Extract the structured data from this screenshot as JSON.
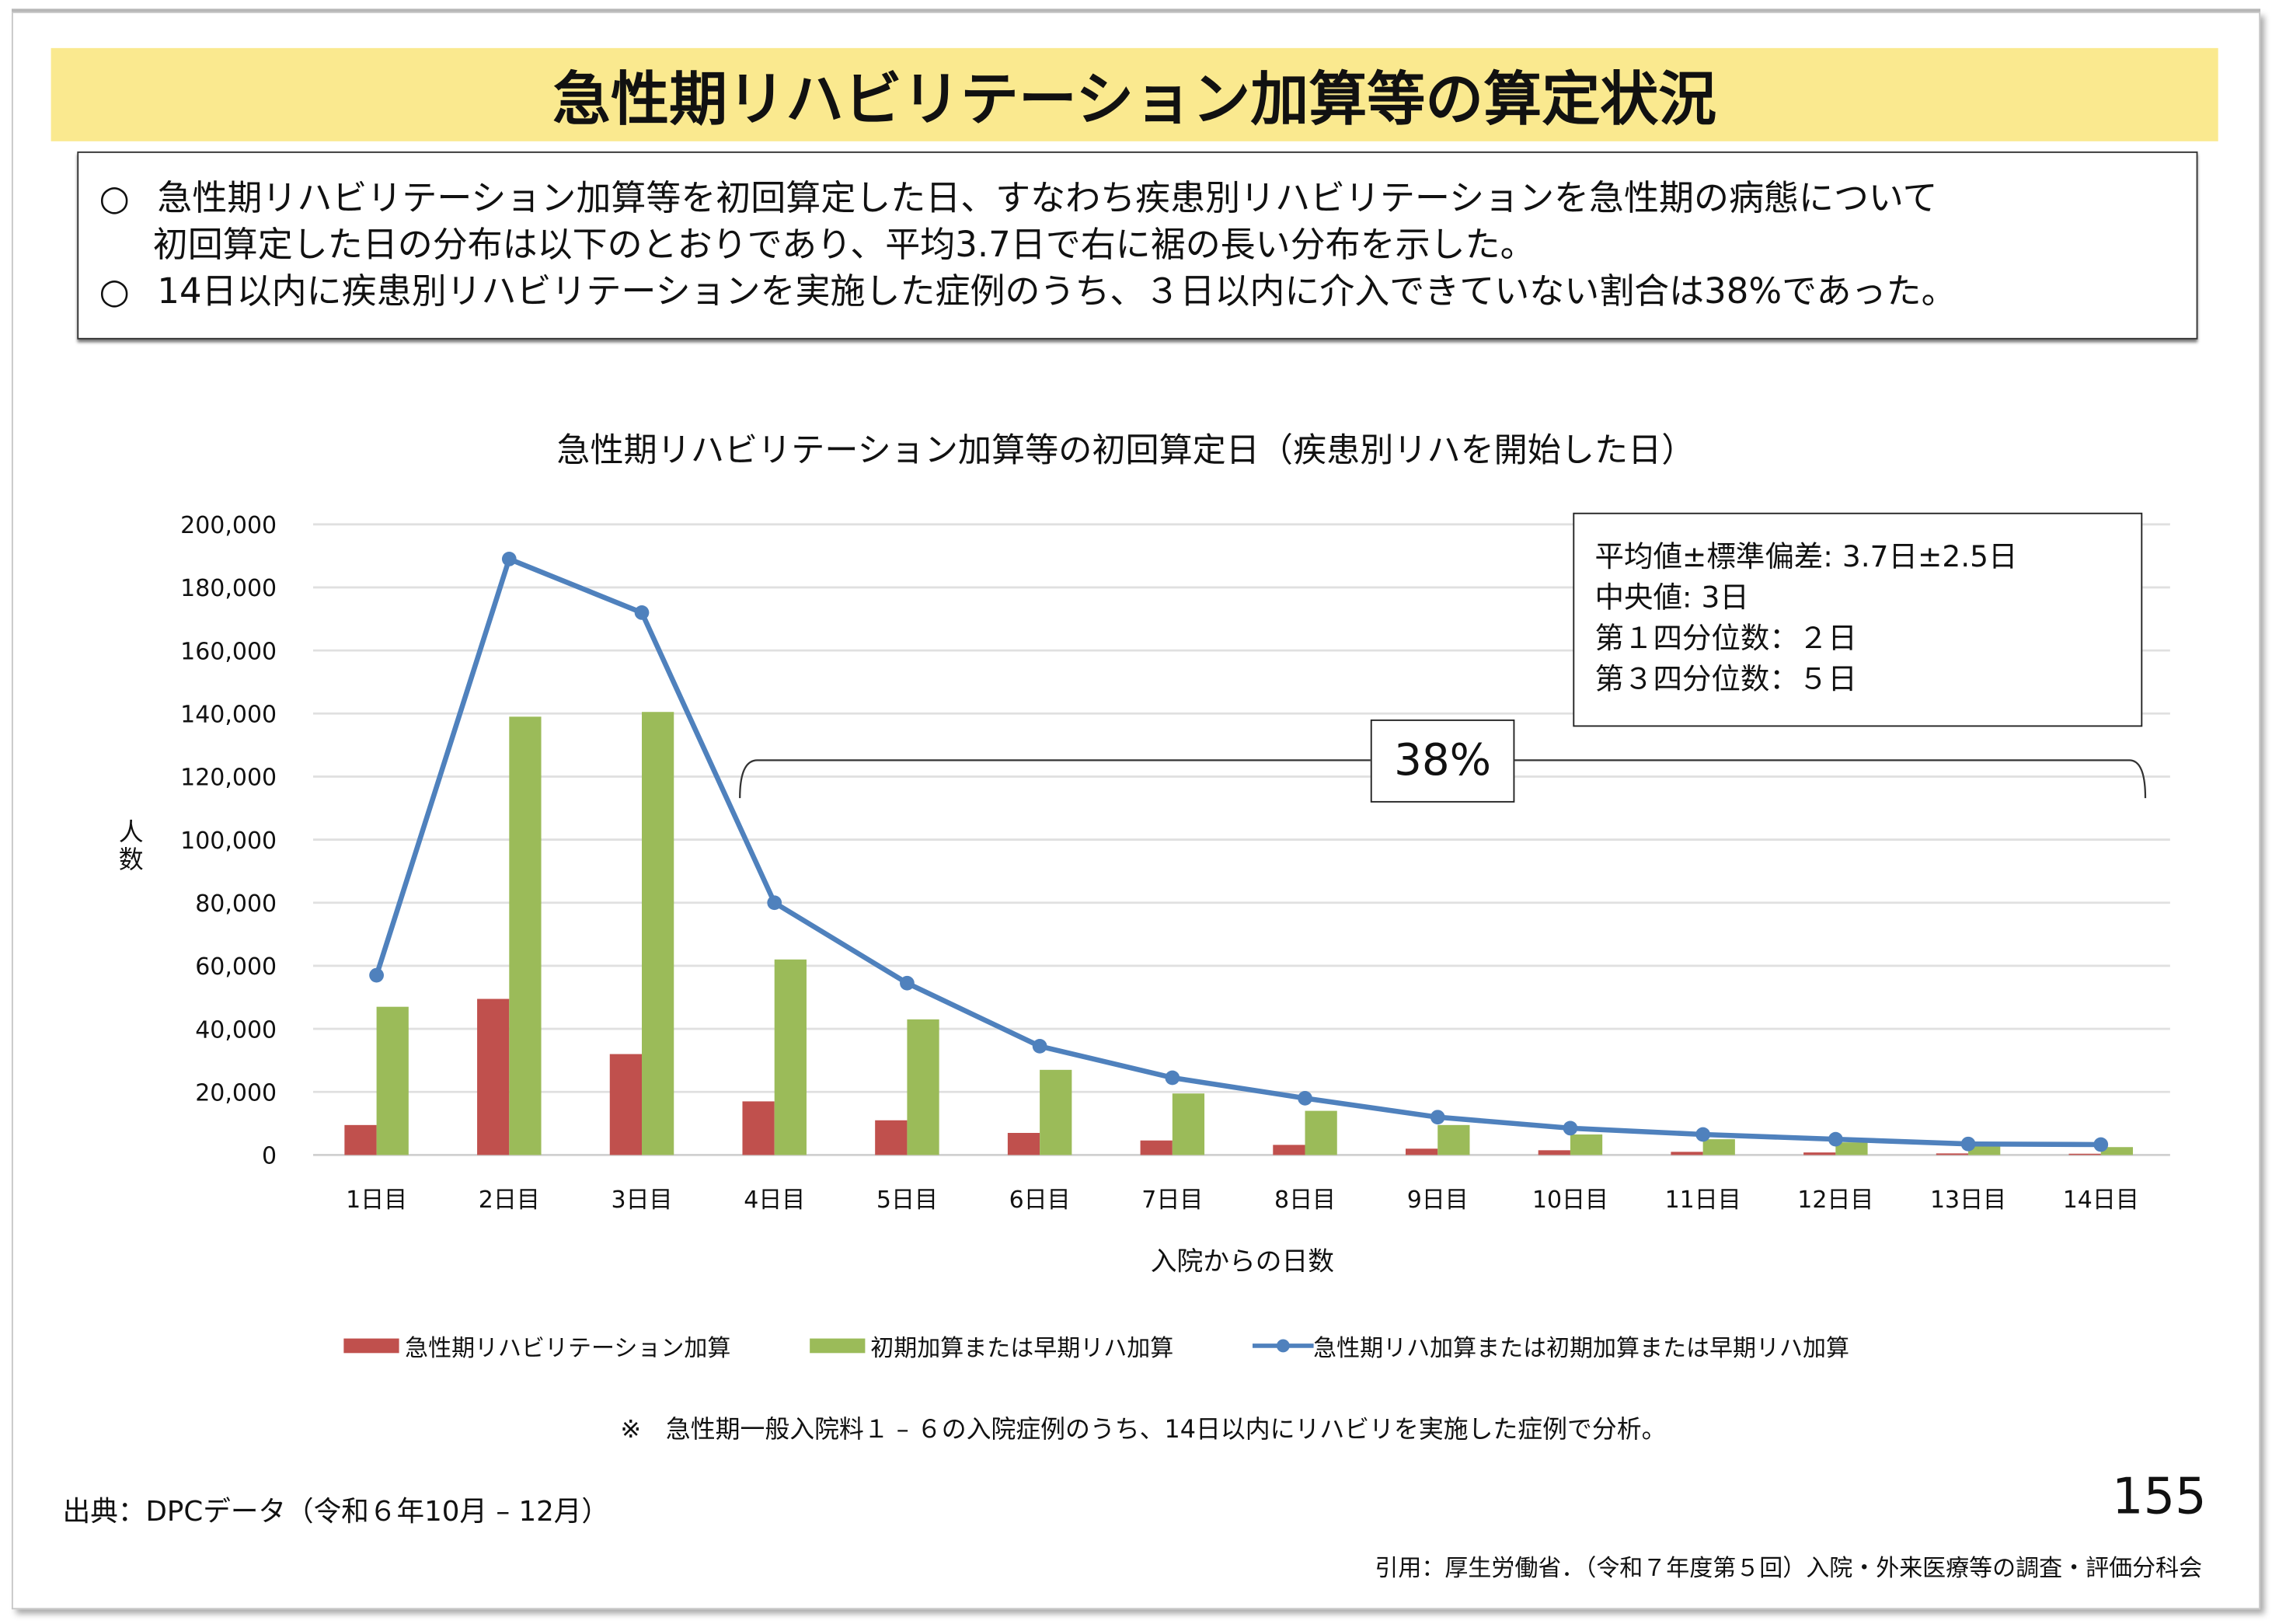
{
  "title": "急性期リハビリテーション加算等の算定状況",
  "summary": {
    "bullet_mark": "○",
    "bullet1_line1": "急性期リハビリテーション加算等を初回算定した日、すなわち疾患別リハビリテーションを急性期の病態について",
    "bullet1_line2": "初回算定した日の分布は以下のとおりであり、平均3.7日で右に裾の長い分布を示した。",
    "bullet2": "14日以内に疾患別リハビリテーションを実施した症例のうち、３日以内に介入できていない割合は38%であった。"
  },
  "stats": {
    "mean_sd": "平均値±標準偏差: 3.7日±2.5日",
    "median": "中央値:  3日",
    "q1": "第１四分位数：２日",
    "q3": "第３四分位数：５日"
  },
  "bracket_label": "38%",
  "note": "※　急性期一般入院料１ – ６の入院症例のうち、14日以内にリハビリを実施した症例で分析。",
  "source": "出典：DPCデータ（令和６年10月 – 12月）",
  "page_number": "155",
  "citation": "引用：厚生労働省．（令和７年度第５回）入院・外来医療等の調査・評価分科会",
  "colors": {
    "red": "#c0504d",
    "green": "#9bbb59",
    "blue": "#4f81bd",
    "title_bg": "#fae98f"
  },
  "chart_data": {
    "type": "bar",
    "title": "急性期リハビリテーション加算等の初回算定日（疾患別リハを開始した日）",
    "xlabel": "入院からの日数",
    "ylabel": "人数",
    "ylim": [
      0,
      200000
    ],
    "yticks": [
      "0",
      "20,000",
      "40,000",
      "60,000",
      "80,000",
      "100,000",
      "120,000",
      "140,000",
      "160,000",
      "180,000",
      "200,000"
    ],
    "grid": true,
    "legend_position": "bottom",
    "categories": [
      "1日目",
      "2日目",
      "3日目",
      "4日目",
      "5日目",
      "6日目",
      "7日目",
      "8日目",
      "9日目",
      "10日目",
      "11日目",
      "12日目",
      "13日目",
      "14日目"
    ],
    "series": [
      {
        "name": "急性期リハビリテーション加算",
        "type": "bar",
        "color": "#c0504d",
        "values": [
          9500,
          49500,
          32000,
          17000,
          11000,
          7000,
          4600,
          3200,
          2000,
          1500,
          1000,
          800,
          500,
          400
        ]
      },
      {
        "name": "初期加算または早期リハ加算",
        "type": "bar",
        "color": "#9bbb59",
        "values": [
          47000,
          139000,
          140500,
          62000,
          43000,
          27000,
          19500,
          14000,
          9500,
          6500,
          5000,
          4000,
          3000,
          2500
        ]
      },
      {
        "name": "急性期リハ加算または初期加算または早期リハ加算",
        "type": "line",
        "color": "#4f81bd",
        "values": [
          57000,
          189000,
          172000,
          80000,
          54500,
          34500,
          24500,
          18000,
          12000,
          8500,
          6500,
          5000,
          3500,
          3300
        ]
      }
    ]
  }
}
